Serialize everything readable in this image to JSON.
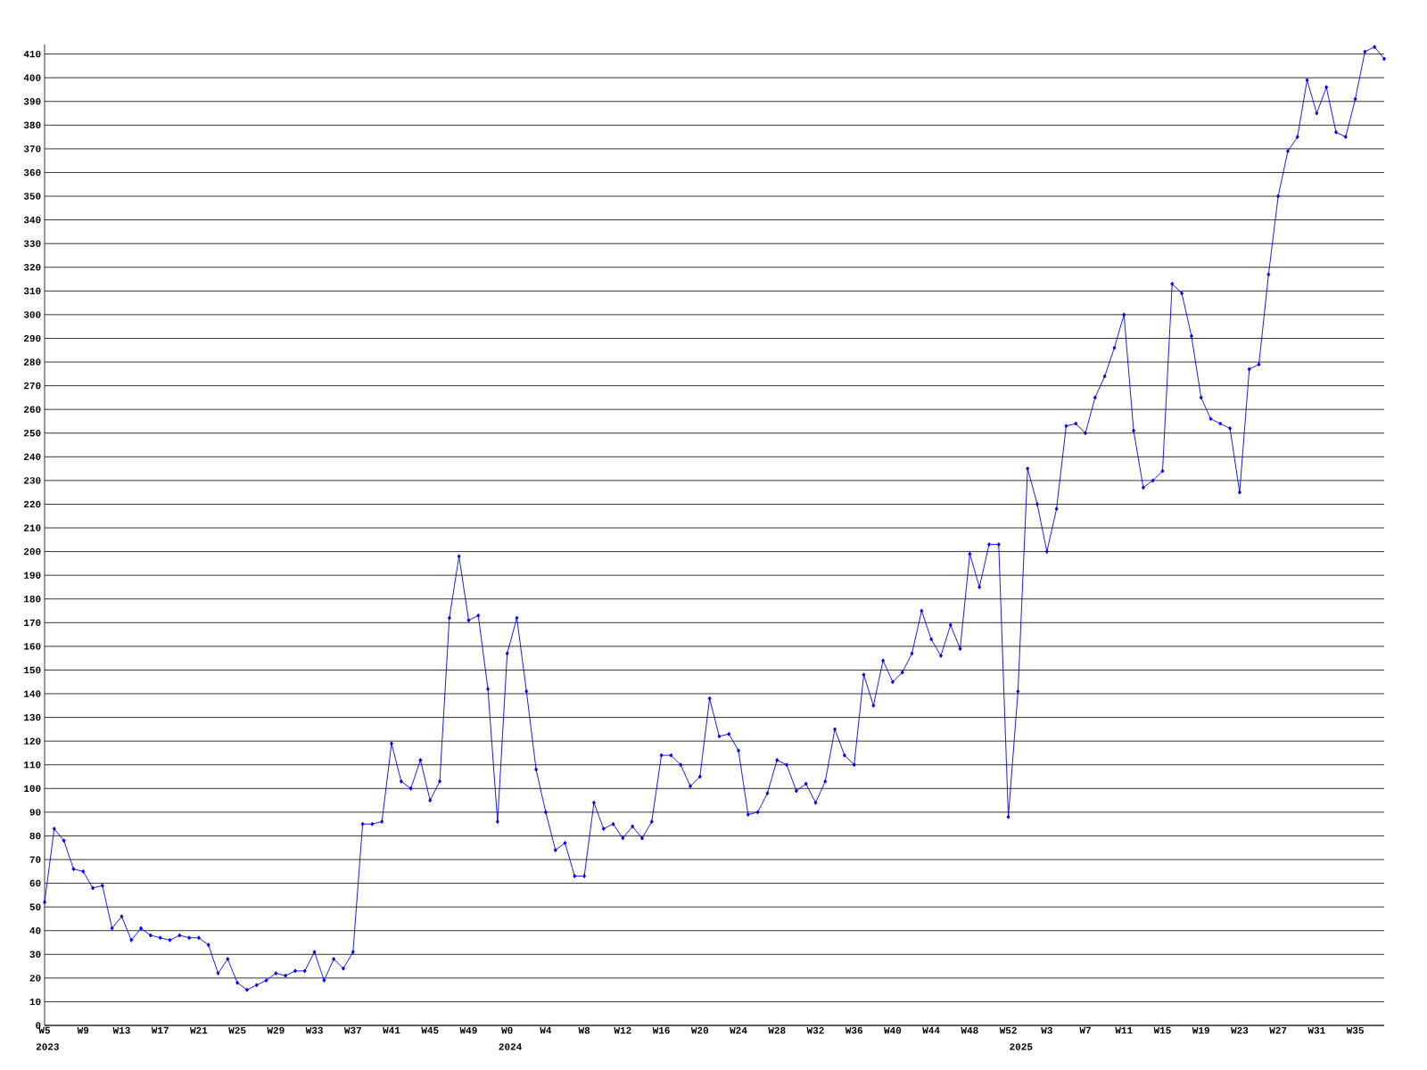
{
  "chart_data": {
    "type": "line",
    "categories": [
      "W5",
      null,
      null,
      null,
      "W9",
      null,
      null,
      null,
      "W13",
      null,
      null,
      null,
      "W17",
      null,
      null,
      null,
      "W21",
      null,
      null,
      null,
      "W25",
      null,
      null,
      null,
      "W29",
      null,
      null,
      null,
      "W33",
      null,
      null,
      null,
      "W37",
      null,
      null,
      null,
      "W41",
      null,
      null,
      null,
      "W45",
      null,
      null,
      null,
      "W49",
      null,
      null,
      null,
      "W0",
      null,
      null,
      null,
      "W4",
      null,
      null,
      null,
      "W8",
      null,
      null,
      null,
      "W12",
      null,
      null,
      null,
      "W16",
      null,
      null,
      null,
      "W20",
      null,
      null,
      null,
      "W24",
      null,
      null,
      null,
      "W28",
      null,
      null,
      null,
      "W32",
      null,
      null,
      null,
      "W36",
      null,
      null,
      null,
      "W40",
      null,
      null,
      null,
      "W44",
      null,
      null,
      null,
      "W48",
      null,
      null,
      null,
      "W52",
      null,
      null,
      null,
      "W3",
      null,
      null,
      null,
      "W7",
      null,
      null,
      null,
      "W11",
      null,
      null,
      null,
      "W15",
      null,
      null,
      null,
      "W19",
      null,
      null,
      null,
      "W23",
      null,
      null,
      null,
      "W27",
      null,
      null,
      null,
      "W31",
      null,
      null,
      null,
      "W35",
      null,
      null,
      null
    ],
    "values": [
      52,
      83,
      78,
      66,
      65,
      58,
      59,
      41,
      46,
      36,
      41,
      38,
      37,
      36,
      38,
      37,
      37,
      34,
      22,
      28,
      18,
      15,
      17,
      19,
      22,
      21,
      23,
      23,
      31,
      19,
      28,
      24,
      31,
      85,
      85,
      86,
      119,
      103,
      100,
      112,
      95,
      103,
      172,
      198,
      171,
      173,
      142,
      86,
      157,
      172,
      141,
      108,
      90,
      74,
      77,
      63,
      63,
      94,
      83,
      85,
      79,
      84,
      79,
      86,
      114,
      114,
      110,
      101,
      105,
      138,
      122,
      123,
      116,
      89,
      90,
      98,
      112,
      110,
      99,
      102,
      94,
      103,
      125,
      114,
      110,
      148,
      135,
      154,
      145,
      149,
      157,
      175,
      163,
      156,
      169,
      159,
      199,
      185,
      203,
      203,
      88,
      141,
      235,
      220,
      200,
      218,
      253,
      254,
      250,
      265,
      274,
      286,
      300,
      251,
      227,
      230,
      234,
      313,
      309,
      291,
      265,
      256,
      254,
      252,
      225,
      277,
      279,
      317,
      350,
      369,
      375,
      399,
      385,
      396,
      377,
      375,
      391,
      411,
      413,
      408
    ],
    "color": "#0000ff",
    "ylim": [
      0,
      414
    ],
    "yticks": [
      0,
      10,
      20,
      30,
      40,
      50,
      60,
      70,
      80,
      90,
      100,
      110,
      120,
      130,
      140,
      150,
      160,
      170,
      180,
      190,
      200,
      210,
      220,
      230,
      240,
      250,
      260,
      270,
      280,
      290,
      300,
      310,
      320,
      330,
      340,
      350,
      360,
      370,
      380,
      390,
      400,
      410
    ],
    "grid": "y",
    "marker": "diamond",
    "line_style": "solid",
    "annotations": [
      "2023",
      "2024",
      "2025"
    ]
  }
}
